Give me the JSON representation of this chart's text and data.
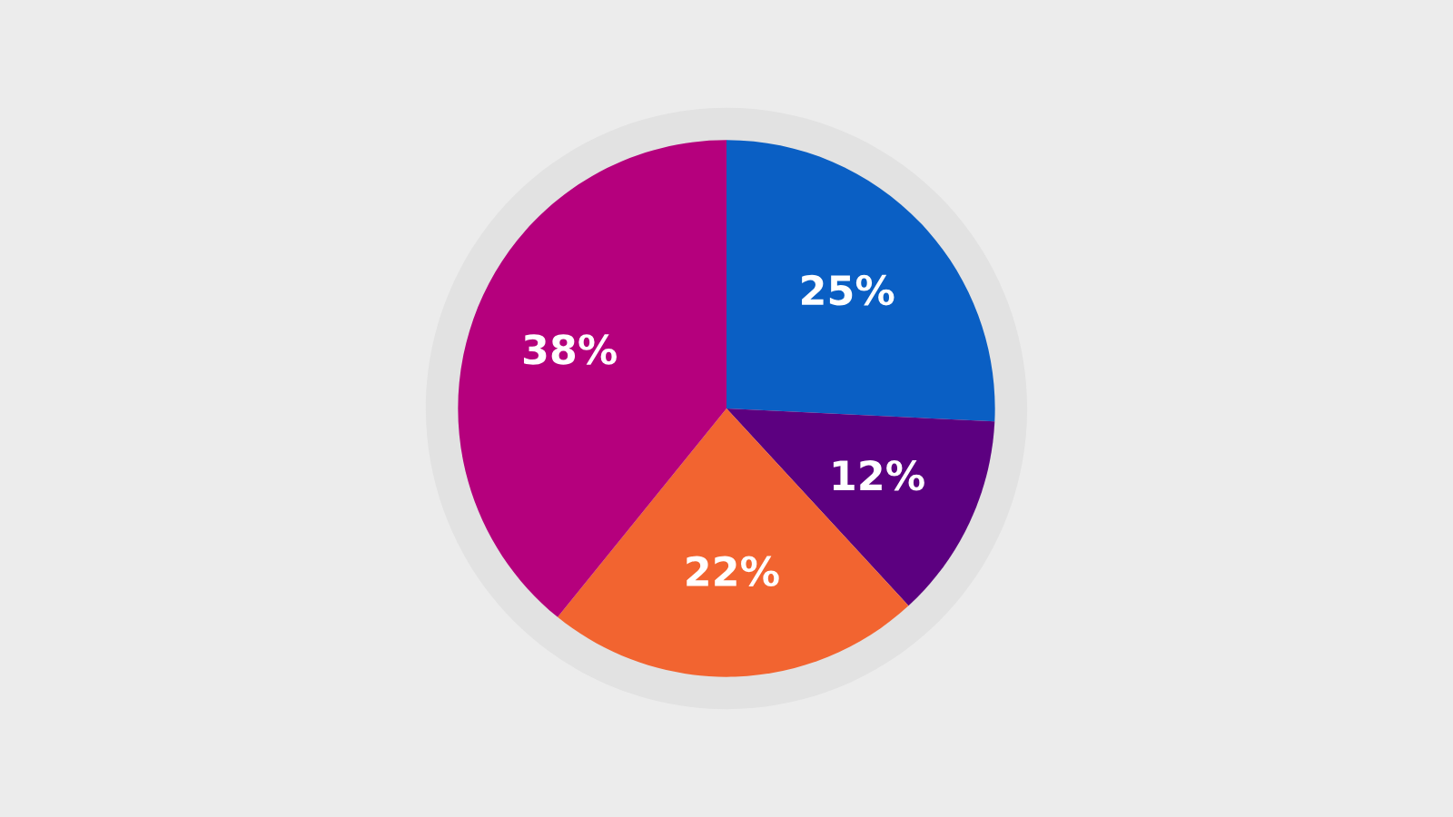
{
  "chart_data": {
    "type": "pie",
    "categories": [
      null,
      null,
      null,
      null
    ],
    "values": [
      25,
      12,
      22,
      38
    ],
    "value_labels": [
      "25%",
      "12%",
      "22%",
      "38%"
    ],
    "colors": [
      "#0a5fc4",
      "#5c0080",
      "#f26430",
      "#b5007d"
    ]
  }
}
